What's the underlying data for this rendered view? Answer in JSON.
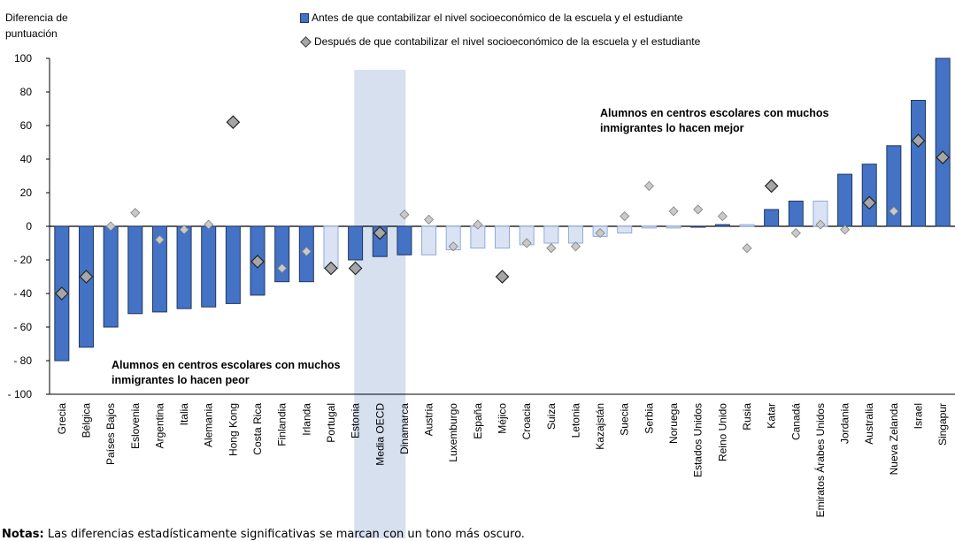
{
  "header": {
    "ylabel_line1": "Diferencia de",
    "ylabel_line2": "puntuación"
  },
  "legend": {
    "before": "Antes de que contabilizar el nivel socioeconómico de la escuela y el estudiante",
    "after": "Después de que contabilizar el nivel socioeconómico de la escuela y el estudiante"
  },
  "annotations": {
    "better_line1": "Alumnos en centros escolares con muchos",
    "better_line2": "inmigrantes lo hacen mejor",
    "worse_line1": "Alumnos en centros escolares con muchos",
    "worse_line2": "inmigrantes lo hacen peor"
  },
  "notes": {
    "label": "Notas:",
    "text": "Las diferencias estadísticamente significativas se marcan con un tono más oscuro."
  },
  "colors": {
    "bar_significant": "#4472c4",
    "bar_not_significant": "#dae3f3",
    "bar_border": "#1f3864",
    "bar_border_light": "#8faadc",
    "diamond_significant": "#a6a6a6",
    "diamond_not_significant": "#c9c9c9",
    "oecd_highlight": "#d6e0ef"
  },
  "chart_data": {
    "type": "bar",
    "title": "",
    "ylabel": "Diferencia de puntuación",
    "ylim": [
      -100,
      100
    ],
    "yticks": [
      100,
      80,
      60,
      40,
      20,
      0,
      -20,
      -40,
      -60,
      -80,
      -100
    ],
    "ytick_labels": [
      "100",
      "80",
      "60",
      "40",
      "20",
      "0",
      "- 20",
      "- 40",
      "- 60",
      "- 80",
      "- 100"
    ],
    "highlight_category": "Media OECD",
    "categories": [
      "Grecia",
      "Bélgica",
      "Países Bajos",
      "Eslovenia",
      "Argentina",
      "Italia",
      "Alemania",
      "Hong Kong",
      "Costa Rica",
      "Finlandia",
      "Irlanda",
      "Portugal",
      "Estonia",
      "Media OECD",
      "Dinamarca",
      "Austria",
      "Luxemburgo",
      "España",
      "Méjico",
      "Croacia",
      "Suiza",
      "Letonia",
      "Kazajstán",
      "Suecia",
      "Serbia",
      "Noruega",
      "Estados Unidos",
      "Reino Unido",
      "Rusia",
      "Katar",
      "Canadá",
      "Emiratos Árabes Unidos",
      "Jordania",
      "Australia",
      "Nueva Zelanda",
      "Israel",
      "Singapur"
    ],
    "series": [
      {
        "name": "Antes de que contabilizar el nivel socioeconómico de la escuela y el estudiante",
        "marker": "bar",
        "values": [
          -80,
          -72,
          -60,
          -52,
          -51,
          -49,
          -48,
          -46,
          -41,
          -33,
          -33,
          -25,
          -20,
          -18,
          -17,
          -17,
          -14,
          -13,
          -13,
          -11,
          -10,
          -10,
          -6,
          -4,
          -1,
          -1,
          0,
          1,
          1,
          10,
          15,
          15,
          31,
          37,
          48,
          75,
          100
        ],
        "significant": [
          true,
          true,
          true,
          true,
          true,
          true,
          true,
          true,
          true,
          true,
          true,
          false,
          true,
          true,
          true,
          false,
          false,
          false,
          false,
          false,
          false,
          false,
          false,
          false,
          false,
          false,
          true,
          true,
          false,
          true,
          true,
          false,
          true,
          true,
          true,
          true,
          true
        ]
      },
      {
        "name": "Después de que contabilizar el nivel socioeconómico de la escuela y el estudiante",
        "marker": "diamond",
        "values": [
          -40,
          -30,
          0,
          8,
          -8,
          -2,
          1,
          62,
          -21,
          -25,
          -15,
          -25,
          -25,
          -4,
          7,
          4,
          -12,
          1,
          -30,
          -10,
          -13,
          -12,
          -4,
          6,
          24,
          9,
          10,
          6,
          -13,
          24,
          -4,
          1,
          -2,
          14,
          9,
          51,
          41
        ],
        "significant": [
          true,
          true,
          false,
          false,
          false,
          false,
          false,
          true,
          true,
          false,
          false,
          true,
          true,
          true,
          false,
          false,
          false,
          false,
          true,
          false,
          false,
          false,
          false,
          false,
          false,
          false,
          false,
          false,
          false,
          true,
          false,
          false,
          false,
          true,
          false,
          true,
          true
        ]
      }
    ]
  }
}
